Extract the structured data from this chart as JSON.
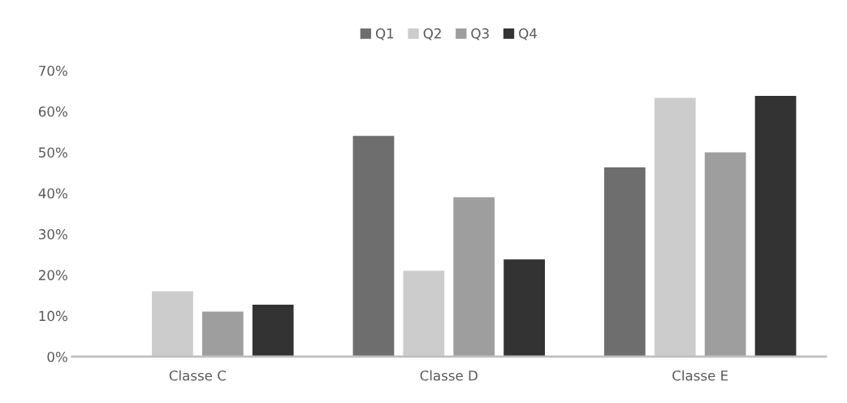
{
  "chart_data": {
    "type": "bar",
    "categories": [
      "Classe C",
      "Classe D",
      "Classe E"
    ],
    "series": [
      {
        "name": "Q1",
        "color": "#6e6e6e",
        "values": [
          0,
          54,
          46.3
        ]
      },
      {
        "name": "Q2",
        "color": "#cccccc",
        "values": [
          16,
          21,
          63.3
        ]
      },
      {
        "name": "Q3",
        "color": "#9e9e9e",
        "values": [
          11,
          39,
          50
        ]
      },
      {
        "name": "Q4",
        "color": "#333333",
        "values": [
          12.7,
          23.8,
          63.8
        ]
      }
    ],
    "ylim": [
      0,
      70
    ],
    "yticks": [
      {
        "value": 0,
        "label": "0%"
      },
      {
        "value": 10,
        "label": "10%"
      },
      {
        "value": 20,
        "label": "20%"
      },
      {
        "value": 30,
        "label": "30%"
      },
      {
        "value": 40,
        "label": "40%"
      },
      {
        "value": 50,
        "label": "50%"
      },
      {
        "value": 60,
        "label": "60%"
      },
      {
        "value": 70,
        "label": "70%"
      }
    ],
    "grid": false,
    "legend": "top"
  }
}
